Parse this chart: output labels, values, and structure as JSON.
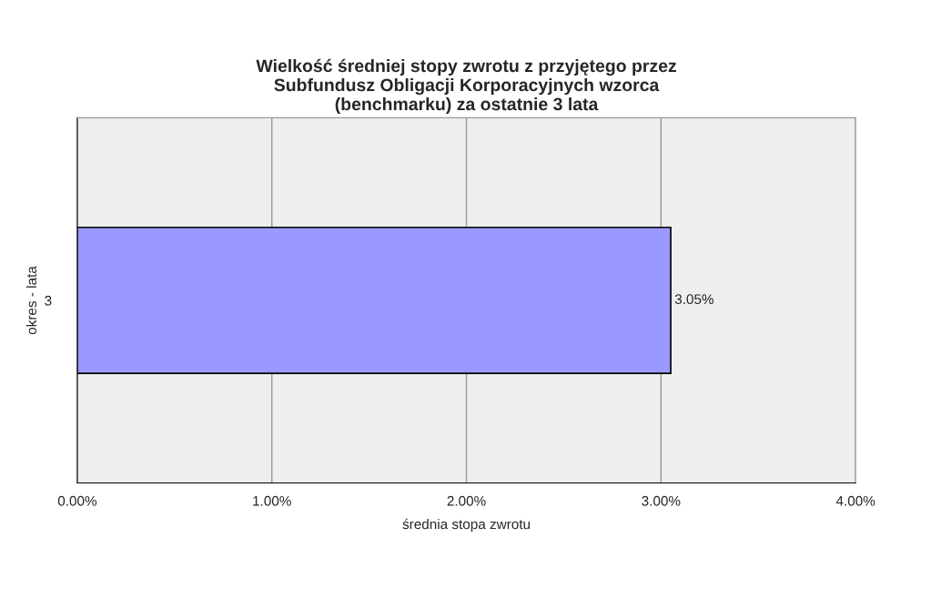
{
  "chart_data": {
    "type": "bar",
    "orientation": "horizontal",
    "title": "Wielkość średniej stopy zwrotu z przyjętego przez\nSubfundusz Obligacji Korporacyjnych wzorca\n(benchmarku) za ostatnie 3 lata",
    "xlabel": "średnia stopa zwrotu",
    "ylabel": "okres - lata",
    "categories": [
      "3"
    ],
    "values": [
      3.05
    ],
    "color": "#9999ff",
    "value_labels": [
      "3.05%"
    ],
    "xlim": [
      0,
      4
    ],
    "xticks": [
      {
        "value": 0,
        "label": "0.00%"
      },
      {
        "value": 1,
        "label": "1.00%"
      },
      {
        "value": 2,
        "label": "2.00%"
      },
      {
        "value": 3,
        "label": "3.00%"
      },
      {
        "value": 4,
        "label": "4.00%"
      }
    ],
    "grid": "x",
    "legend": false
  }
}
